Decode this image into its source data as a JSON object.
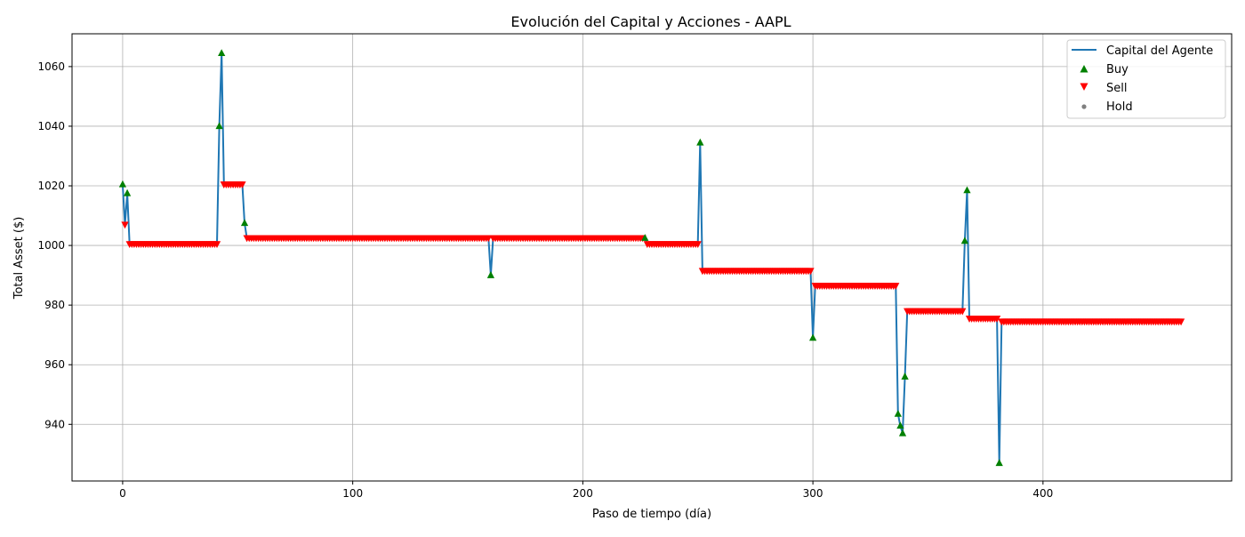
{
  "chart_data": {
    "type": "line",
    "title": "Evolución del Capital y Acciones - AAPL",
    "xlabel": "Paso de tiempo (día)",
    "ylabel": "Total Asset ($)",
    "xlim": [
      -22,
      482
    ],
    "ylim": [
      921,
      1071
    ],
    "xticks": [
      0,
      100,
      200,
      300,
      400
    ],
    "yticks": [
      940,
      960,
      980,
      1000,
      1020,
      1040,
      1060
    ],
    "grid": true,
    "legend_position": "top-right",
    "legend": [
      {
        "label": "Capital del Agente",
        "kind": "line",
        "color": "#1f77b4"
      },
      {
        "label": "Buy",
        "kind": "up-triangle",
        "color": "#008000"
      },
      {
        "label": "Sell",
        "kind": "down-triangle",
        "color": "#ff0000"
      },
      {
        "label": "Hold",
        "kind": "dot",
        "color": "#808080"
      }
    ],
    "series": [
      {
        "name": "Capital del Agente",
        "color": "#1f77b4",
        "points": [
          [
            0,
            1020.5
          ],
          [
            1,
            1007
          ],
          [
            2,
            1017.5
          ],
          [
            3,
            1000.5
          ],
          [
            41,
            1000.5
          ],
          [
            42,
            1040
          ],
          [
            43,
            1064.5
          ],
          [
            44,
            1020.5
          ],
          [
            52,
            1020.5
          ],
          [
            53,
            1007.5
          ],
          [
            54,
            1002.5
          ],
          [
            159,
            1002.5
          ],
          [
            160,
            990
          ],
          [
            161,
            1002.5
          ],
          [
            227,
            1002.5
          ],
          [
            228,
            1000.5
          ],
          [
            250,
            1000.5
          ],
          [
            251,
            1034.5
          ],
          [
            252,
            991.5
          ],
          [
            299,
            991.5
          ],
          [
            300,
            969
          ],
          [
            301,
            986.5
          ],
          [
            336,
            986.5
          ],
          [
            337,
            943.5
          ],
          [
            338,
            939.5
          ],
          [
            339,
            937
          ],
          [
            340,
            956
          ],
          [
            341,
            978
          ],
          [
            365,
            978
          ],
          [
            366,
            1001.5
          ],
          [
            367,
            1018.5
          ],
          [
            368,
            975.5
          ],
          [
            380,
            975.5
          ],
          [
            381,
            927
          ],
          [
            382,
            974.5
          ],
          [
            460,
            974.5
          ]
        ]
      },
      {
        "name": "Buy",
        "marker": "up-triangle",
        "color": "#008000",
        "points": [
          [
            0,
            1020.5
          ],
          [
            2,
            1017.5
          ],
          [
            42,
            1040
          ],
          [
            43,
            1064.5
          ],
          [
            53,
            1007.5
          ],
          [
            160,
            990
          ],
          [
            227,
            1002.5
          ],
          [
            251,
            1034.5
          ],
          [
            300,
            969
          ],
          [
            337,
            943.5
          ],
          [
            338,
            939.5
          ],
          [
            339,
            937
          ],
          [
            340,
            956
          ],
          [
            366,
            1001.5
          ],
          [
            367,
            1018.5
          ],
          [
            381,
            927
          ]
        ]
      },
      {
        "name": "Sell",
        "marker": "down-triangle",
        "color": "#ff0000",
        "points": [
          [
            1,
            1007
          ]
        ],
        "segments": [
          [
            3,
            41,
            1000.5
          ],
          [
            44,
            52,
            1020.5
          ],
          [
            54,
            159,
            1002.5
          ],
          [
            161,
            226,
            1002.5
          ],
          [
            228,
            250,
            1000.5
          ],
          [
            252,
            299,
            991.5
          ],
          [
            301,
            336,
            986.5
          ],
          [
            341,
            365,
            978
          ],
          [
            368,
            380,
            975.5
          ],
          [
            382,
            460,
            974.5
          ]
        ]
      },
      {
        "name": "Hold",
        "marker": "dot",
        "color": "#808080",
        "points": []
      }
    ]
  }
}
